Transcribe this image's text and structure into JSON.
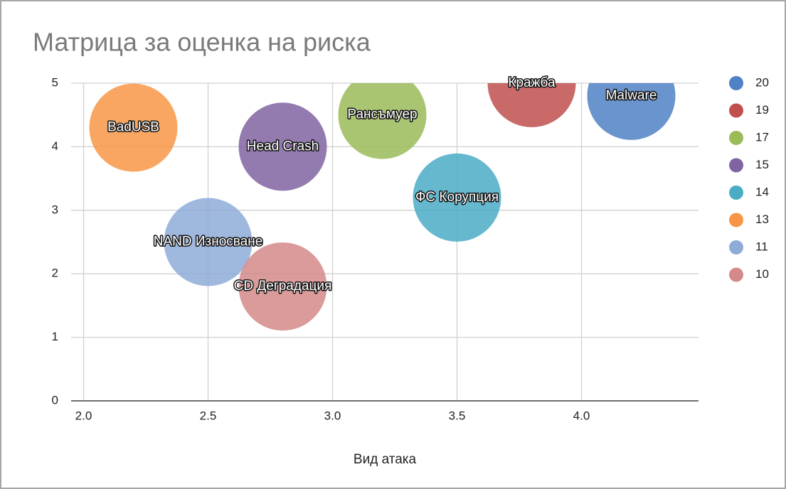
{
  "chart_data": {
    "type": "bubble",
    "title": "Матрица за оценка на риска",
    "x_label": "Вид атака",
    "xlim": [
      1.95,
      4.47
    ],
    "ylim": [
      0,
      5
    ],
    "xticks": [
      {
        "value": 2,
        "label": "2.0"
      },
      {
        "value": 2.5,
        "label": "2.5"
      },
      {
        "value": 3,
        "label": "3.0"
      },
      {
        "value": 3.5,
        "label": "3.5"
      },
      {
        "value": 4,
        "label": "4.0"
      }
    ],
    "yticks": [
      0,
      1,
      2,
      3,
      4,
      5
    ],
    "grid": true,
    "legend": "right",
    "series": [
      {
        "name": "20",
        "color": "#4f81c4",
        "x": [
          4.2
        ],
        "values": [
          4.8
        ],
        "labels": [
          "Malware"
        ]
      },
      {
        "name": "19",
        "color": "#c0504d",
        "x": [
          3.8
        ],
        "values": [
          5.0
        ],
        "labels": [
          "Кражба"
        ]
      },
      {
        "name": "17",
        "color": "#9bbb59",
        "x": [
          3.2
        ],
        "values": [
          4.5
        ],
        "labels": [
          "Рансъмуер"
        ]
      },
      {
        "name": "15",
        "color": "#8064a2",
        "x": [
          2.8
        ],
        "values": [
          4.0
        ],
        "labels": [
          "Head Crash"
        ]
      },
      {
        "name": "14",
        "color": "#4bacc6",
        "x": [
          3.5
        ],
        "values": [
          3.2
        ],
        "labels": [
          "ФС Корупция"
        ]
      },
      {
        "name": "13",
        "color": "#f79646",
        "x": [
          2.2
        ],
        "values": [
          4.3
        ],
        "labels": [
          "BadUSB"
        ]
      },
      {
        "name": "11",
        "color": "#8eacd8",
        "x": [
          2.5
        ],
        "values": [
          2.5
        ],
        "labels": [
          "NAND Износване"
        ]
      },
      {
        "name": "10",
        "color": "#d48a88",
        "x": [
          2.8
        ],
        "values": [
          1.8
        ],
        "labels": [
          "CD Деградация"
        ]
      }
    ]
  }
}
